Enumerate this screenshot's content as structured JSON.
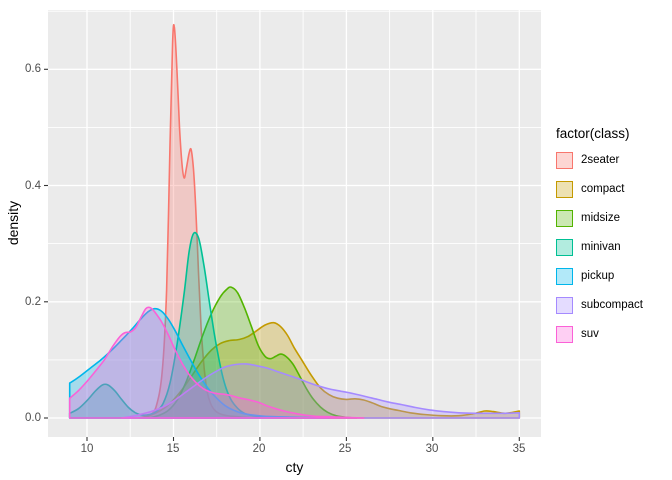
{
  "figure": {
    "background": "#FFFFFF",
    "panel_background": "#EBEBEB",
    "grid_color": "#FFFFFF",
    "tick_mark_color": "#333333",
    "axis_text_color": "#4D4D4D",
    "axis_title_color": "#000000"
  },
  "chart_data": {
    "type": "area",
    "subtype": "overlaid-kernel-density",
    "title": "",
    "xlabel": "cty",
    "ylabel": "density",
    "grid": true,
    "legend_title": "factor(class)",
    "legend_position": "right",
    "fill_alpha": 0.3,
    "x_range": [
      7.743,
      36.257
    ],
    "y_range": [
      -0.0327,
      0.702
    ],
    "x_ticks": [
      10,
      15,
      20,
      25,
      30,
      35
    ],
    "x_tick_labels": [
      "10",
      "15",
      "20",
      "25",
      "30",
      "35"
    ],
    "x_minor": [
      12.5,
      17.5,
      22.5,
      27.5,
      32.5
    ],
    "y_ticks": [
      0,
      0.2,
      0.4,
      0.6
    ],
    "y_tick_labels": [
      "0.0",
      "0.2",
      "0.4",
      "0.6"
    ],
    "y_minor": [
      0.1,
      0.3,
      0.5,
      0.7
    ],
    "series": [
      {
        "name": "2seater",
        "color": "#F8766D",
        "points": [
          [
            13.2,
            0
          ],
          [
            13.6,
            0.004
          ],
          [
            14,
            0.02
          ],
          [
            14.35,
            0.08
          ],
          [
            14.6,
            0.22
          ],
          [
            14.8,
            0.47
          ],
          [
            14.95,
            0.645
          ],
          [
            15.05,
            0.673
          ],
          [
            15.2,
            0.6
          ],
          [
            15.35,
            0.5
          ],
          [
            15.5,
            0.435
          ],
          [
            15.62,
            0.413
          ],
          [
            15.75,
            0.43
          ],
          [
            15.9,
            0.455
          ],
          [
            16.02,
            0.462
          ],
          [
            16.15,
            0.43
          ],
          [
            16.3,
            0.355
          ],
          [
            16.45,
            0.25
          ],
          [
            16.6,
            0.155
          ],
          [
            16.78,
            0.085
          ],
          [
            16.95,
            0.045
          ],
          [
            17.15,
            0.025
          ],
          [
            17.4,
            0.013
          ],
          [
            17.8,
            0.006
          ],
          [
            18.4,
            0.003
          ],
          [
            19.2,
            0.001
          ],
          [
            20,
            0
          ]
        ]
      },
      {
        "name": "compact",
        "color": "#C49A00",
        "points": [
          [
            13,
            0
          ],
          [
            13.6,
            0.004
          ],
          [
            14.2,
            0.012
          ],
          [
            14.8,
            0.025
          ],
          [
            15.4,
            0.045
          ],
          [
            16,
            0.07
          ],
          [
            16.6,
            0.096
          ],
          [
            17.2,
            0.117
          ],
          [
            17.7,
            0.128
          ],
          [
            18.2,
            0.133
          ],
          [
            18.8,
            0.135
          ],
          [
            19.3,
            0.14
          ],
          [
            19.8,
            0.15
          ],
          [
            20.3,
            0.16
          ],
          [
            20.8,
            0.164
          ],
          [
            21.2,
            0.157
          ],
          [
            21.6,
            0.142
          ],
          [
            22,
            0.12
          ],
          [
            22.5,
            0.096
          ],
          [
            23,
            0.072
          ],
          [
            23.5,
            0.052
          ],
          [
            24,
            0.04
          ],
          [
            24.5,
            0.034
          ],
          [
            25,
            0.032
          ],
          [
            25.5,
            0.033
          ],
          [
            26,
            0.031
          ],
          [
            26.5,
            0.026
          ],
          [
            27,
            0.02
          ],
          [
            27.5,
            0.016
          ],
          [
            28,
            0.013
          ],
          [
            28.7,
            0.009
          ],
          [
            29.5,
            0.006
          ],
          [
            30.5,
            0.004
          ],
          [
            31.5,
            0.004
          ],
          [
            32.3,
            0.007
          ],
          [
            33,
            0.012
          ],
          [
            33.5,
            0.011
          ],
          [
            34.2,
            0.008
          ],
          [
            35,
            0.012
          ]
        ]
      },
      {
        "name": "midsize",
        "color": "#53B400",
        "points": [
          [
            13.6,
            0
          ],
          [
            14.2,
            0.005
          ],
          [
            14.7,
            0.013
          ],
          [
            15.2,
            0.03
          ],
          [
            15.7,
            0.06
          ],
          [
            16.2,
            0.1
          ],
          [
            16.7,
            0.143
          ],
          [
            17.2,
            0.18
          ],
          [
            17.7,
            0.208
          ],
          [
            18.1,
            0.222
          ],
          [
            18.35,
            0.225
          ],
          [
            18.7,
            0.216
          ],
          [
            19.1,
            0.19
          ],
          [
            19.5,
            0.158
          ],
          [
            19.9,
            0.125
          ],
          [
            20.3,
            0.106
          ],
          [
            20.6,
            0.102
          ],
          [
            20.9,
            0.106
          ],
          [
            21.2,
            0.11
          ],
          [
            21.5,
            0.106
          ],
          [
            21.9,
            0.093
          ],
          [
            22.3,
            0.072
          ],
          [
            22.7,
            0.05
          ],
          [
            23.1,
            0.032
          ],
          [
            23.5,
            0.019
          ],
          [
            23.9,
            0.01
          ],
          [
            24.4,
            0.004
          ],
          [
            25,
            0.001
          ],
          [
            25.6,
            0
          ]
        ]
      },
      {
        "name": "minivan",
        "color": "#00C094",
        "points": [
          [
            9,
            0.008
          ],
          [
            9.5,
            0.016
          ],
          [
            10,
            0.03
          ],
          [
            10.5,
            0.047
          ],
          [
            10.9,
            0.057
          ],
          [
            11.2,
            0.057
          ],
          [
            11.6,
            0.047
          ],
          [
            12,
            0.032
          ],
          [
            12.4,
            0.018
          ],
          [
            12.8,
            0.009
          ],
          [
            13.2,
            0.005
          ],
          [
            13.6,
            0.006
          ],
          [
            14,
            0.011
          ],
          [
            14.4,
            0.025
          ],
          [
            14.8,
            0.06
          ],
          [
            15.2,
            0.125
          ],
          [
            15.6,
            0.21
          ],
          [
            15.9,
            0.285
          ],
          [
            16.15,
            0.317
          ],
          [
            16.45,
            0.31
          ],
          [
            16.75,
            0.265
          ],
          [
            17.05,
            0.205
          ],
          [
            17.35,
            0.147
          ],
          [
            17.65,
            0.098
          ],
          [
            17.95,
            0.06
          ],
          [
            18.3,
            0.033
          ],
          [
            18.7,
            0.017
          ],
          [
            19.1,
            0.008
          ],
          [
            19.6,
            0.004
          ],
          [
            20.2,
            0.002
          ],
          [
            21,
            0.001
          ],
          [
            22,
            0
          ]
        ]
      },
      {
        "name": "pickup",
        "color": "#00B6EB",
        "points": [
          [
            9,
            0.06
          ],
          [
            9.6,
            0.072
          ],
          [
            10.2,
            0.086
          ],
          [
            10.8,
            0.1
          ],
          [
            11.4,
            0.116
          ],
          [
            12,
            0.134
          ],
          [
            12.6,
            0.153
          ],
          [
            13.1,
            0.17
          ],
          [
            13.5,
            0.182
          ],
          [
            13.9,
            0.188
          ],
          [
            14.3,
            0.184
          ],
          [
            14.7,
            0.17
          ],
          [
            15.1,
            0.15
          ],
          [
            15.5,
            0.127
          ],
          [
            16,
            0.099
          ],
          [
            16.5,
            0.073
          ],
          [
            17,
            0.051
          ],
          [
            17.5,
            0.034
          ],
          [
            18,
            0.021
          ],
          [
            18.5,
            0.013
          ],
          [
            19,
            0.008
          ],
          [
            19.6,
            0.005
          ],
          [
            20.3,
            0.003
          ],
          [
            21.2,
            0.002
          ],
          [
            22.5,
            0.001
          ],
          [
            24,
            0
          ]
        ]
      },
      {
        "name": "subcompact",
        "color": "#A58AFF",
        "points": [
          [
            12,
            0
          ],
          [
            12.6,
            0.003
          ],
          [
            13.2,
            0.007
          ],
          [
            13.8,
            0.012
          ],
          [
            14.4,
            0.019
          ],
          [
            15,
            0.029
          ],
          [
            15.6,
            0.042
          ],
          [
            16.2,
            0.055
          ],
          [
            16.8,
            0.068
          ],
          [
            17.4,
            0.079
          ],
          [
            18,
            0.088
          ],
          [
            18.6,
            0.092
          ],
          [
            19.2,
            0.093
          ],
          [
            19.8,
            0.09
          ],
          [
            20.4,
            0.086
          ],
          [
            21,
            0.08
          ],
          [
            21.6,
            0.074
          ],
          [
            22.2,
            0.068
          ],
          [
            22.8,
            0.061
          ],
          [
            23.4,
            0.055
          ],
          [
            24,
            0.05
          ],
          [
            24.7,
            0.046
          ],
          [
            25.4,
            0.042
          ],
          [
            26.1,
            0.037
          ],
          [
            26.8,
            0.032
          ],
          [
            27.5,
            0.027
          ],
          [
            28.2,
            0.023
          ],
          [
            29,
            0.018
          ],
          [
            29.8,
            0.014
          ],
          [
            30.6,
            0.011
          ],
          [
            31.5,
            0.009
          ],
          [
            32.5,
            0.008
          ],
          [
            33.5,
            0.008
          ],
          [
            34.2,
            0.008
          ],
          [
            35,
            0.009
          ]
        ]
      },
      {
        "name": "suv",
        "color": "#FB61D7",
        "points": [
          [
            9,
            0.034
          ],
          [
            9.5,
            0.047
          ],
          [
            10,
            0.063
          ],
          [
            10.5,
            0.081
          ],
          [
            11,
            0.1
          ],
          [
            11.5,
            0.124
          ],
          [
            11.9,
            0.14
          ],
          [
            12.2,
            0.147
          ],
          [
            12.5,
            0.148
          ],
          [
            12.8,
            0.155
          ],
          [
            13.1,
            0.172
          ],
          [
            13.4,
            0.188
          ],
          [
            13.65,
            0.19
          ],
          [
            13.9,
            0.183
          ],
          [
            14.3,
            0.166
          ],
          [
            14.7,
            0.143
          ],
          [
            15.1,
            0.117
          ],
          [
            15.5,
            0.094
          ],
          [
            15.9,
            0.075
          ],
          [
            16.3,
            0.061
          ],
          [
            16.7,
            0.051
          ],
          [
            17.1,
            0.045
          ],
          [
            17.5,
            0.042
          ],
          [
            17.9,
            0.041
          ],
          [
            18.4,
            0.038
          ],
          [
            18.9,
            0.034
          ],
          [
            19.4,
            0.031
          ],
          [
            19.9,
            0.027
          ],
          [
            20.4,
            0.021
          ],
          [
            20.9,
            0.016
          ],
          [
            21.4,
            0.012
          ],
          [
            22,
            0.008
          ],
          [
            22.6,
            0.005
          ],
          [
            23.2,
            0.003
          ],
          [
            24,
            0.002
          ],
          [
            25,
            0.001
          ],
          [
            26,
            0
          ]
        ]
      }
    ]
  }
}
